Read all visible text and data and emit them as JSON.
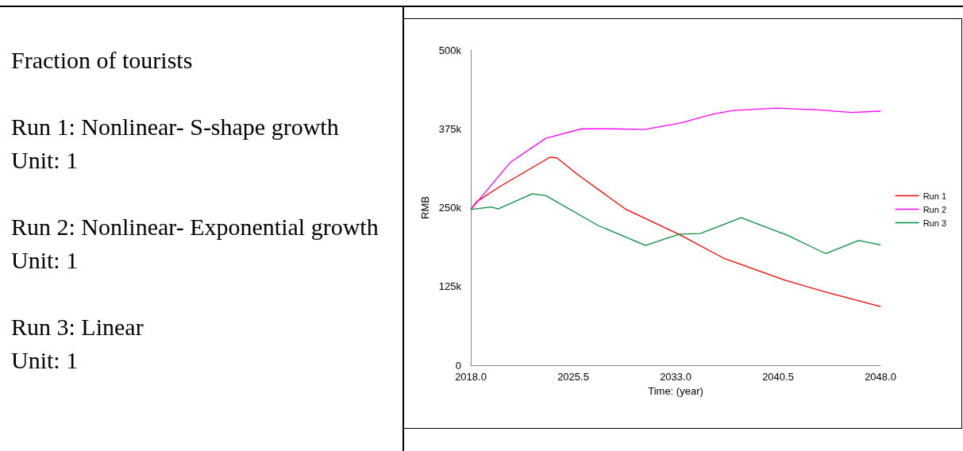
{
  "chart_data": {
    "type": "line",
    "xlabel": "Time: (year)",
    "ylabel": "RMB",
    "annotations": [
      "Fraction of tourists",
      "Run 1: Nonlinear- S-shape growth\nUnit: 1",
      "Run 2: Nonlinear- Exponential growth\nUnit: 1",
      "Run 3: Linear\nUnit: 1"
    ],
    "xlim": [
      2018,
      2048
    ],
    "xticks": [
      {
        "value": 2018,
        "label": "2018.0"
      },
      {
        "value": 2025.5,
        "label": "2025.5"
      },
      {
        "value": 2033,
        "label": "2033.0"
      },
      {
        "value": 2040.5,
        "label": "2040.5"
      },
      {
        "value": 2048,
        "label": "2048.0"
      }
    ],
    "ylim": [
      0,
      500000
    ],
    "yticks": [
      0,
      {
        "value": 125000,
        "label": "125k"
      },
      {
        "value": 250000,
        "label": "250k"
      },
      {
        "value": 375000,
        "label": "375k"
      },
      {
        "value": 500000,
        "label": "500k"
      }
    ],
    "grid": false,
    "legend": "right",
    "marker": "none",
    "line_style": "solid",
    "series": [
      {
        "name": "Run 1",
        "color": "#ff0000",
        "x": [
          2018,
          2018.4,
          2020.1,
          2023.8,
          2024.3,
          2025.8,
          2029.3,
          2033.3,
          2036.5,
          2041.0,
          2044.0,
          2048
        ],
        "values": [
          247000,
          259000,
          283000,
          330000,
          329000,
          303000,
          248000,
          207000,
          170000,
          135000,
          116000,
          93000
        ]
      },
      {
        "name": "Run 2",
        "color": "#ff00ff",
        "x": [
          2018,
          2020.9,
          2023.5,
          2026.1,
          2028.4,
          2030.7,
          2033.5,
          2034.3,
          2035.9,
          2037.2,
          2040.5,
          2043.4,
          2045.9,
          2048
        ],
        "values": [
          247000,
          322000,
          360000,
          375000,
          375000,
          374000,
          385000,
          390000,
          399000,
          404000,
          408000,
          405000,
          401000,
          403000
        ]
      },
      {
        "name": "Run 3",
        "color": "#008f3f",
        "x": [
          2018,
          2019.5,
          2020,
          2022.5,
          2023.5,
          2027.3,
          2030.8,
          2032.3,
          2033.3,
          2034.8,
          2037.8,
          2041.2,
          2044.0,
          2046.4,
          2048
        ],
        "values": [
          247000,
          251000,
          248000,
          272000,
          269000,
          222000,
          190000,
          201000,
          208000,
          209000,
          234000,
          206000,
          177000,
          198000,
          191000
        ]
      }
    ]
  }
}
